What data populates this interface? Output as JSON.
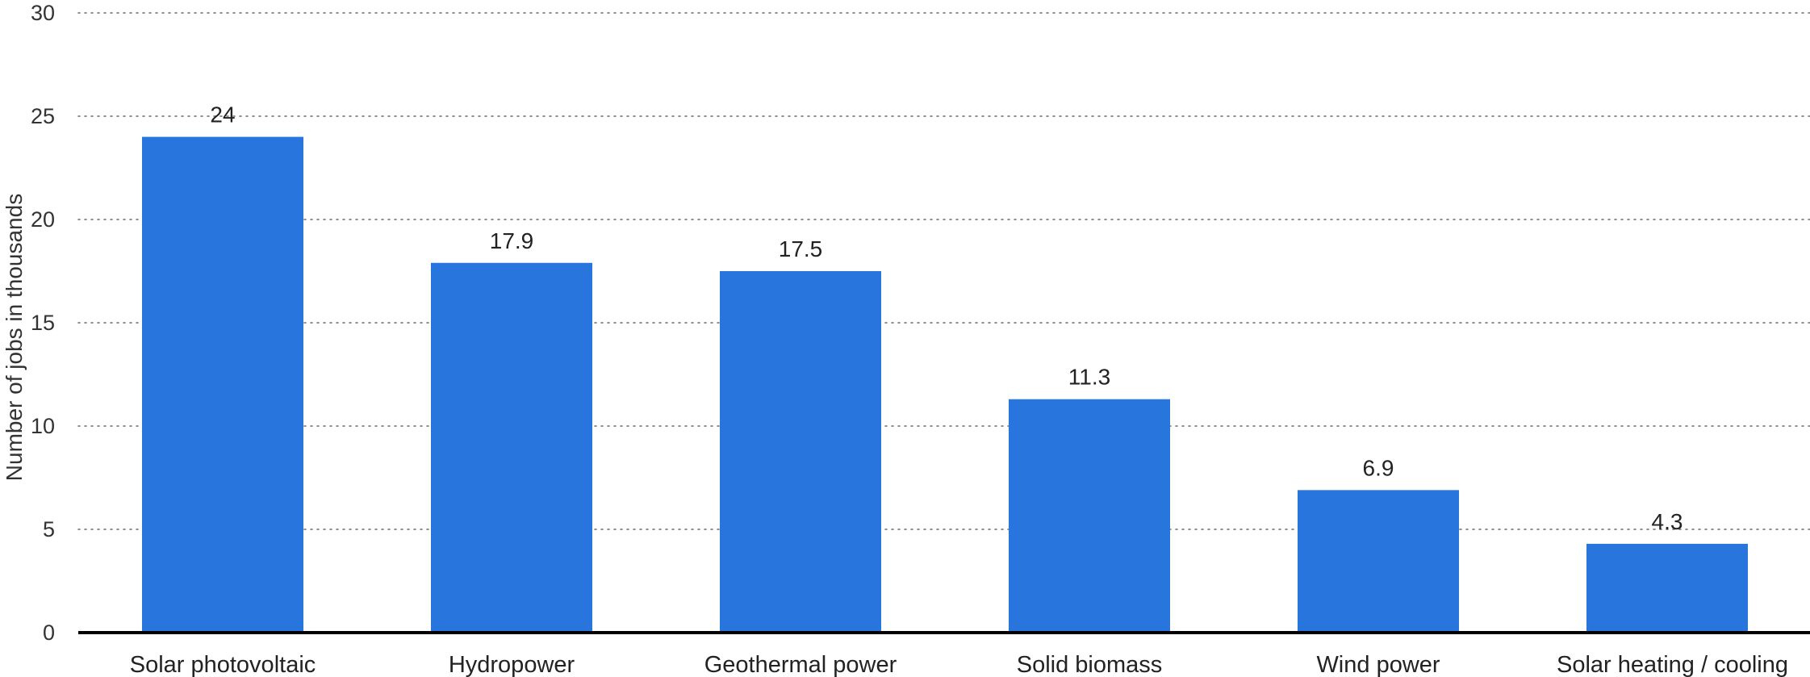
{
  "chart_data": {
    "type": "bar",
    "title": "",
    "xlabel": "",
    "ylabel": "Number of jobs in thousands",
    "ylim": [
      0,
      30
    ],
    "yticks": [
      0,
      5,
      10,
      15,
      20,
      25,
      30
    ],
    "grid": true,
    "categories": [
      "Solar photovoltaic",
      "Hydropower",
      "Geothermal power",
      "Solid biomass",
      "Wind power",
      "Solar heating / cooling"
    ],
    "values": [
      24,
      17.9,
      17.5,
      11.3,
      6.9,
      4.3
    ],
    "value_labels": [
      "24",
      "17.9",
      "17.5",
      "11.3",
      "6.9",
      "4.3"
    ],
    "bar_color": "#2876dd"
  }
}
